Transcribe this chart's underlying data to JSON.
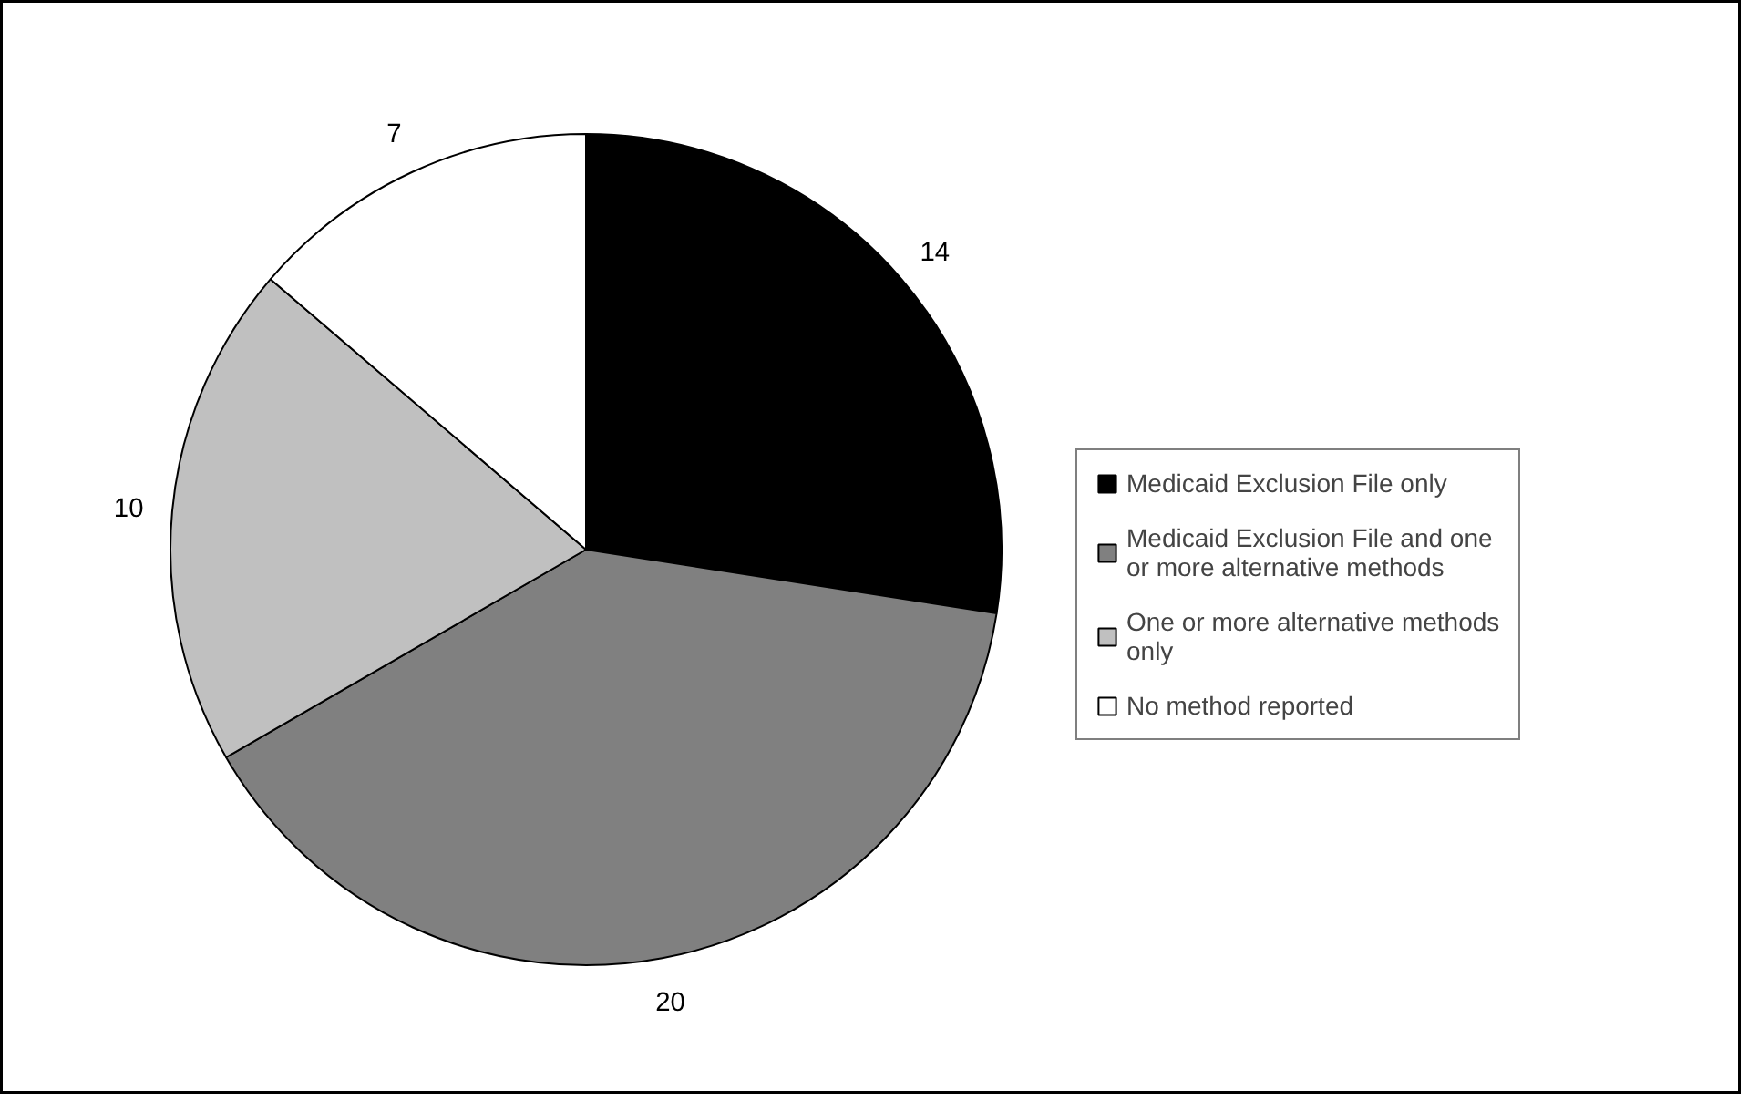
{
  "chart_data": {
    "type": "pie",
    "categories": [
      "Medicaid Exclusion File only",
      "Medicaid Exclusion File and one or more alternative methods",
      "One or more alternative methods only",
      "No method reported"
    ],
    "values": [
      14,
      20,
      10,
      7
    ],
    "colors": [
      "#000000",
      "#808080",
      "#c0c0c0",
      "#ffffff"
    ],
    "data_labels": true,
    "legend": "right"
  }
}
